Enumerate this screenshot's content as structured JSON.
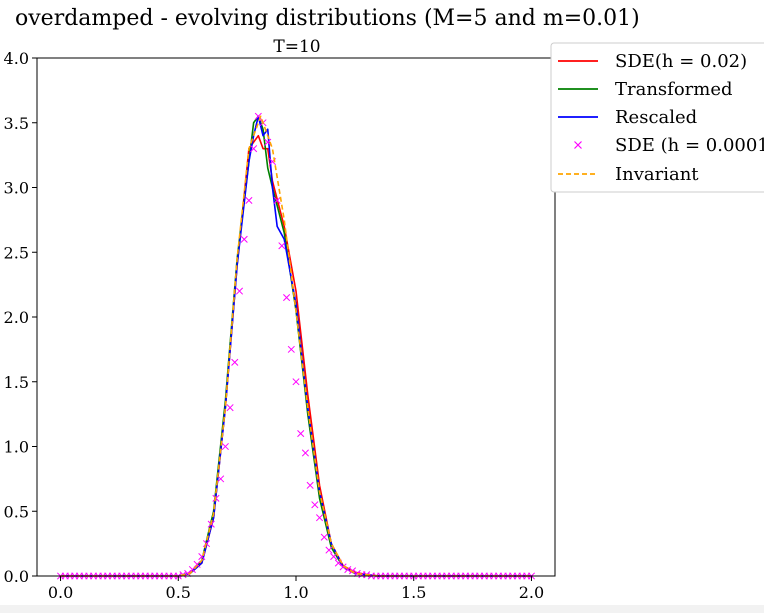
{
  "figure": {
    "suptitle": "overdamped - evolving distributions (M=5 and m=0.01)"
  },
  "chart_data": {
    "type": "line",
    "title": "T=10",
    "xlabel": "",
    "ylabel": "",
    "xlim": [
      -0.1,
      2.1
    ],
    "ylim": [
      0.0,
      4.0
    ],
    "xticks": [
      0.0,
      0.5,
      1.0,
      1.5,
      2.0
    ],
    "xtick_labels": [
      "0.0",
      "0.5",
      "1.0",
      "1.5",
      "2.0"
    ],
    "yticks": [
      0.0,
      0.5,
      1.0,
      1.5,
      2.0,
      2.5,
      3.0,
      3.5,
      4.0
    ],
    "ytick_labels": [
      "0.0",
      "0.5",
      "1.0",
      "1.5",
      "2.0",
      "2.5",
      "3.0",
      "3.5",
      "4.0"
    ],
    "grid": false,
    "legend_position": "upper-right-outside",
    "legend": [
      {
        "label": "SDE(h = 0.02)",
        "color": "#ff0000",
        "style": "solid"
      },
      {
        "label": "Transformed",
        "color": "#008000",
        "style": "solid"
      },
      {
        "label": "Rescaled",
        "color": "#0000ff",
        "style": "solid"
      },
      {
        "label": "SDE (h = 0.0001)",
        "color": "#ff00ff",
        "style": "marker-x"
      },
      {
        "label": "Invariant",
        "color": "#ffa500",
        "style": "dashed"
      }
    ],
    "series": [
      {
        "name": "SDE(h = 0.02)",
        "color": "#ff0000",
        "x": [
          0.0,
          0.5,
          0.55,
          0.6,
          0.65,
          0.7,
          0.75,
          0.8,
          0.82,
          0.84,
          0.86,
          0.88,
          0.9,
          0.95,
          1.0,
          1.05,
          1.1,
          1.15,
          1.2,
          1.25,
          1.3,
          1.35,
          1.4,
          2.0
        ],
        "y": [
          0.0,
          0.0,
          0.02,
          0.1,
          0.45,
          1.3,
          2.4,
          3.3,
          3.35,
          3.4,
          3.3,
          3.3,
          3.05,
          2.7,
          2.2,
          1.4,
          0.7,
          0.25,
          0.08,
          0.03,
          0.01,
          0.0,
          0.0,
          0.0
        ]
      },
      {
        "name": "Transformed",
        "color": "#008000",
        "x": [
          0.0,
          0.5,
          0.55,
          0.6,
          0.65,
          0.7,
          0.75,
          0.8,
          0.82,
          0.84,
          0.86,
          0.88,
          0.9,
          0.95,
          1.0,
          1.05,
          1.1,
          1.15,
          1.2,
          1.25,
          1.3,
          1.35,
          1.4,
          2.0
        ],
        "y": [
          0.0,
          0.0,
          0.02,
          0.12,
          0.5,
          1.35,
          2.45,
          3.2,
          3.5,
          3.55,
          3.45,
          3.15,
          3.0,
          2.65,
          2.05,
          1.25,
          0.6,
          0.22,
          0.07,
          0.02,
          0.01,
          0.0,
          0.0,
          0.0
        ]
      },
      {
        "name": "Rescaled",
        "color": "#0000ff",
        "x": [
          0.0,
          0.5,
          0.55,
          0.6,
          0.65,
          0.7,
          0.75,
          0.8,
          0.82,
          0.84,
          0.86,
          0.88,
          0.9,
          0.92,
          0.95,
          1.0,
          1.05,
          1.1,
          1.15,
          1.2,
          1.25,
          1.3,
          1.35,
          1.4,
          2.0
        ],
        "y": [
          0.0,
          0.0,
          0.02,
          0.1,
          0.45,
          1.3,
          2.4,
          3.2,
          3.4,
          3.55,
          3.4,
          3.45,
          3.0,
          2.7,
          2.6,
          2.1,
          1.3,
          0.65,
          0.25,
          0.07,
          0.02,
          0.01,
          0.0,
          0.0,
          0.0
        ]
      },
      {
        "name": "Invariant",
        "color": "#ffa500",
        "x": [
          0.0,
          0.5,
          0.55,
          0.6,
          0.65,
          0.7,
          0.75,
          0.8,
          0.85,
          0.9,
          0.95,
          1.0,
          1.05,
          1.1,
          1.15,
          1.2,
          1.25,
          1.3,
          1.35,
          1.4,
          2.0
        ],
        "y": [
          0.0,
          0.0,
          0.02,
          0.12,
          0.48,
          1.3,
          2.45,
          3.3,
          3.55,
          3.3,
          2.75,
          2.05,
          1.3,
          0.65,
          0.25,
          0.08,
          0.02,
          0.01,
          0.0,
          0.0,
          0.0
        ]
      },
      {
        "name": "SDE (h = 0.0001)",
        "color": "#ff00ff",
        "marker": "x",
        "x": [
          0.0,
          0.02,
          0.04,
          0.06,
          0.08,
          0.1,
          0.12,
          0.14,
          0.16,
          0.18,
          0.2,
          0.22,
          0.24,
          0.26,
          0.28,
          0.3,
          0.32,
          0.34,
          0.36,
          0.38,
          0.4,
          0.42,
          0.44,
          0.46,
          0.48,
          0.5,
          0.52,
          0.54,
          0.56,
          0.58,
          0.6,
          0.62,
          0.64,
          0.66,
          0.68,
          0.7,
          0.72,
          0.74,
          0.76,
          0.78,
          0.8,
          0.82,
          0.84,
          0.86,
          0.88,
          0.9,
          0.92,
          0.94,
          0.96,
          0.98,
          1.0,
          1.02,
          1.04,
          1.06,
          1.08,
          1.1,
          1.12,
          1.14,
          1.16,
          1.18,
          1.2,
          1.22,
          1.24,
          1.26,
          1.28,
          1.3,
          1.32,
          1.34,
          1.36,
          1.38,
          1.4,
          1.42,
          1.44,
          1.46,
          1.48,
          1.5,
          1.52,
          1.54,
          1.56,
          1.58,
          1.6,
          1.62,
          1.64,
          1.66,
          1.68,
          1.7,
          1.72,
          1.74,
          1.76,
          1.78,
          1.8,
          1.82,
          1.84,
          1.86,
          1.88,
          1.9,
          1.92,
          1.94,
          1.96,
          1.98,
          2.0
        ],
        "y": [
          0.0,
          0.0,
          0.0,
          0.0,
          0.0,
          0.0,
          0.0,
          0.0,
          0.0,
          0.0,
          0.0,
          0.0,
          0.0,
          0.0,
          0.0,
          0.0,
          0.0,
          0.0,
          0.0,
          0.0,
          0.0,
          0.0,
          0.0,
          0.0,
          0.0,
          0.0,
          0.01,
          0.02,
          0.05,
          0.09,
          0.15,
          0.25,
          0.4,
          0.6,
          0.75,
          1.0,
          1.3,
          1.65,
          2.2,
          2.6,
          2.9,
          3.3,
          3.55,
          3.5,
          3.35,
          3.2,
          2.9,
          2.55,
          2.15,
          1.75,
          1.5,
          1.1,
          0.95,
          0.7,
          0.55,
          0.45,
          0.3,
          0.2,
          0.15,
          0.1,
          0.07,
          0.05,
          0.04,
          0.02,
          0.01,
          0.01,
          0.0,
          0.0,
          0.0,
          0.0,
          0.0,
          0.0,
          0.0,
          0.0,
          0.0,
          0.0,
          0.0,
          0.0,
          0.0,
          0.0,
          0.0,
          0.0,
          0.0,
          0.0,
          0.0,
          0.0,
          0.0,
          0.0,
          0.0,
          0.0,
          0.0,
          0.0,
          0.0,
          0.0,
          0.0,
          0.0,
          0.0,
          0.0,
          0.0,
          0.0,
          0.0
        ]
      }
    ]
  }
}
